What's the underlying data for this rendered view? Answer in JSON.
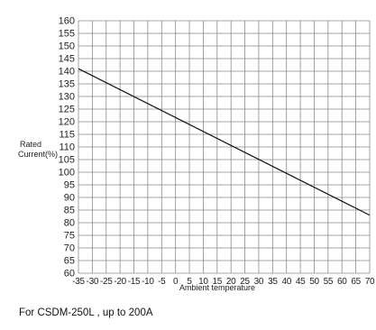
{
  "chart_data": {
    "type": "line",
    "xlabel": "Ambient temperature",
    "ylabel_lines": [
      "Rated",
      "Current(%)"
    ],
    "x_ticks": [
      "-35",
      "-30",
      "-25",
      "-20",
      "-15",
      "-10",
      "-5",
      "0",
      "5",
      "10",
      "15",
      "20",
      "25",
      "30",
      "35",
      "40",
      "45",
      "50",
      "55",
      "60",
      "65",
      "70"
    ],
    "y_ticks": [
      "160",
      "155",
      "150",
      "145",
      "140",
      "135",
      "130",
      "125",
      "120",
      "115",
      "110",
      "105",
      "100",
      "95",
      "90",
      "85",
      "80",
      "75",
      "70",
      "65",
      "60"
    ],
    "xlim": [
      -35,
      70
    ],
    "ylim": [
      60,
      160
    ],
    "grid": true,
    "series": [
      {
        "x": [
          -35,
          70
        ],
        "y": [
          141,
          83
        ]
      }
    ],
    "colors": {
      "line": "#111111",
      "grid": "#8a8a8a",
      "text": "#222222"
    }
  },
  "caption": "For CSDM-250L , up to 200A"
}
